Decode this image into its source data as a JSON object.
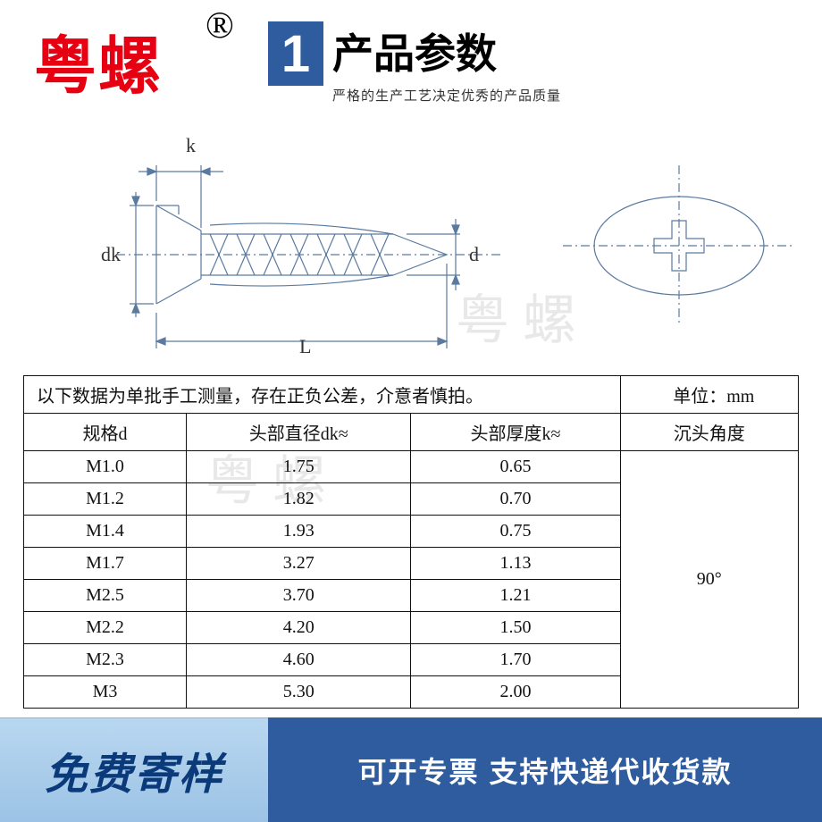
{
  "brand": "粤螺",
  "reg_mark": "®",
  "title_number": "1",
  "title_main": "产品参数",
  "title_sub": "严格的生产工艺决定优秀的产品质量",
  "dim_labels": {
    "k": "k",
    "dk": "dk",
    "d": "d",
    "L": "L"
  },
  "watermark_text": "粤 螺",
  "table": {
    "note": "以下数据为单批手工测量，存在正负公差，介意者慎拍。",
    "unit_label": "单位：mm",
    "columns": [
      "规格d",
      "头部直径dk≈",
      "头部厚度k≈",
      "沉头角度"
    ],
    "angle_value": "90°",
    "rows": [
      [
        "M1.0",
        "1.75",
        "0.65"
      ],
      [
        "M1.2",
        "1.82",
        "0.70"
      ],
      [
        "M1.4",
        "1.93",
        "0.75"
      ],
      [
        "M1.7",
        "3.27",
        "1.13"
      ],
      [
        "M2.5",
        "3.70",
        "1.21"
      ],
      [
        "M2.2",
        "4.20",
        "1.50"
      ],
      [
        "M2.3",
        "4.60",
        "1.70"
      ],
      [
        "M3",
        "5.30",
        "2.00"
      ]
    ]
  },
  "footer": {
    "left": "免费寄样",
    "right": "可开专票 支持快递代收货款"
  },
  "colors": {
    "brand_red": "#e60012",
    "blue_dark": "#2e5c9e",
    "diagram_stroke": "#5a7aa0",
    "table_border": "#111111",
    "footer_grad_top": "#b9d7f0",
    "footer_grad_bot": "#9cc3e5",
    "footer_text_blue": "#0a3a7a"
  },
  "diagram": {
    "stroke_width": 1.2,
    "centerline_dash": "8 4 2 4"
  }
}
